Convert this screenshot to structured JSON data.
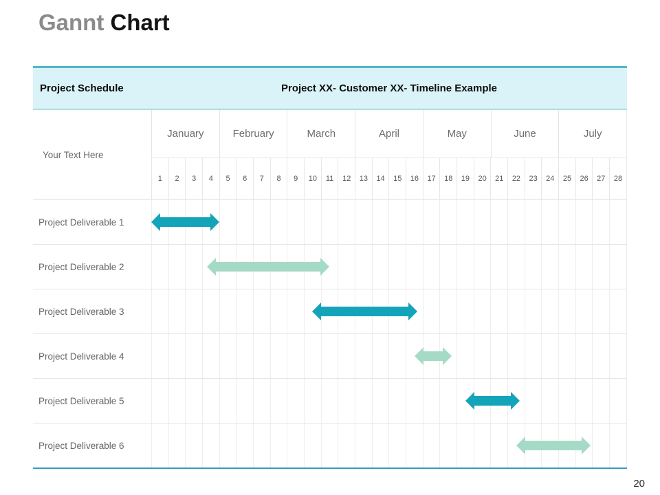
{
  "page": {
    "title_part1": "Gannt",
    "title_part2": "Chart",
    "page_number": "20"
  },
  "table": {
    "schedule_label": "Project Schedule",
    "timeline_title": "Project XX- Customer XX- Timeline Example",
    "axis_label": "Your Text Here"
  },
  "colors": {
    "teal": "#14a4ba",
    "green": "#a5dbc6",
    "header_bg": "#daf3f8",
    "line_top": "#53b7c6",
    "line_under_header": "#aedde4",
    "line_bottom": "#2e9fc0"
  },
  "chart_data": {
    "type": "bar",
    "subtype": "gantt",
    "title": "Project XX- Customer XX- Timeline Example",
    "legend_position": "none",
    "grid": true,
    "x_axis": {
      "months": [
        "January",
        "February",
        "March",
        "April",
        "May",
        "June",
        "July"
      ],
      "days": [
        1,
        2,
        3,
        4,
        5,
        6,
        7,
        8,
        9,
        10,
        11,
        12,
        13,
        14,
        15,
        16,
        17,
        18,
        19,
        20,
        21,
        22,
        23,
        24,
        25,
        26,
        27,
        28
      ],
      "days_per_month": 4,
      "day_range": [
        1,
        28
      ]
    },
    "rows": [
      {
        "label": "Project Deliverable 1",
        "start_day": 1.0,
        "end_day": 5.0,
        "color_key": "teal"
      },
      {
        "label": "Project Deliverable 2",
        "start_day": 4.3,
        "end_day": 11.5,
        "color_key": "green"
      },
      {
        "label": "Project Deliverable 3",
        "start_day": 10.5,
        "end_day": 16.7,
        "color_key": "teal"
      },
      {
        "label": "Project Deliverable 4",
        "start_day": 16.5,
        "end_day": 18.7,
        "color_key": "green"
      },
      {
        "label": "Project Deliverable 5",
        "start_day": 19.5,
        "end_day": 22.7,
        "color_key": "teal"
      },
      {
        "label": "Project Deliverable 6",
        "start_day": 22.5,
        "end_day": 26.9,
        "color_key": "green"
      }
    ]
  }
}
